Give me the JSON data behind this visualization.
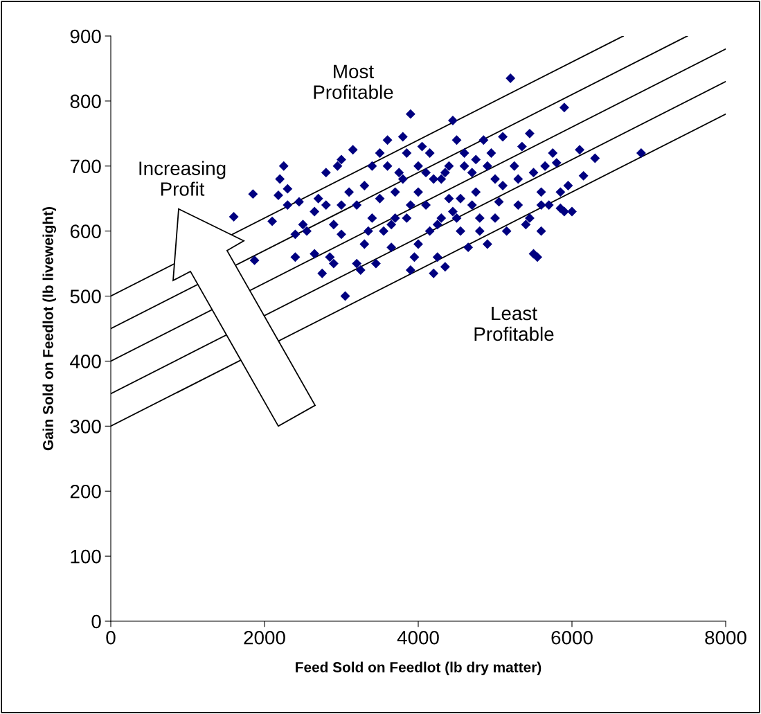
{
  "chart_data": {
    "type": "scatter",
    "xlabel": "Feed Sold on Feedlot (lb dry matter)",
    "ylabel": "Gain Sold on Feedlot (lb liveweight)",
    "xlim": [
      0,
      8000
    ],
    "ylim": [
      0,
      900
    ],
    "xticks": [
      0,
      2000,
      4000,
      6000,
      8000
    ],
    "yticks": [
      0,
      100,
      200,
      300,
      400,
      500,
      600,
      700,
      800,
      900
    ],
    "grid": false,
    "annotations": [
      "Increasing Profit",
      "Most Profitable",
      "Least Profitable"
    ],
    "series": [
      {
        "marker": "diamond",
        "color": "#000080",
        "x": [
          1600,
          1850,
          1870,
          2100,
          2200,
          2250,
          2180,
          2300,
          2300,
          2400,
          2400,
          2450,
          2550,
          2500,
          2650,
          2700,
          2750,
          2800,
          2850,
          2900,
          2950,
          3000,
          3050,
          3000,
          3100,
          3150,
          3200,
          3250,
          3300,
          3400,
          3450,
          3500,
          3550,
          3600,
          3650,
          3700,
          3750,
          3800,
          3850,
          3900,
          3900,
          3950,
          4000,
          4000,
          4050,
          4100,
          4150,
          4200,
          4250,
          4250,
          4300,
          4350,
          4400,
          4450,
          4500,
          4500,
          4550,
          4600,
          4650,
          4700,
          4750,
          4800,
          4850,
          4900,
          4950,
          5000,
          5050,
          5100,
          5150,
          5200,
          5250,
          5300,
          5350,
          5400,
          5450,
          5500,
          5550,
          5500,
          5600,
          5600,
          5650,
          5700,
          5750,
          5850,
          5900,
          5900,
          5950,
          6000,
          6100,
          6150,
          6300,
          6900,
          5450,
          5600,
          5800,
          5850,
          5000,
          4800,
          4600,
          4400,
          4200,
          4000,
          3800,
          3600,
          3400,
          3200,
          3000,
          2800,
          3500,
          3700,
          3900,
          4100,
          4300,
          4700,
          4900,
          5100,
          3300,
          3650,
          4350,
          4550,
          2650,
          2900,
          3350,
          4750,
          5300,
          3850,
          4150,
          4450
        ],
        "values": [
          622,
          657,
          555,
          615,
          680,
          700,
          655,
          640,
          665,
          595,
          560,
          645,
          600,
          610,
          565,
          650,
          535,
          690,
          560,
          550,
          700,
          710,
          500,
          595,
          660,
          725,
          550,
          540,
          580,
          620,
          550,
          720,
          600,
          740,
          575,
          660,
          690,
          745,
          620,
          780,
          540,
          560,
          700,
          580,
          730,
          640,
          720,
          535,
          560,
          610,
          680,
          545,
          700,
          770,
          740,
          620,
          650,
          720,
          575,
          690,
          660,
          620,
          740,
          580,
          720,
          680,
          645,
          745,
          600,
          835,
          700,
          680,
          730,
          610,
          750,
          565,
          560,
          690,
          640,
          600,
          700,
          640,
          720,
          660,
          630,
          790,
          670,
          630,
          725,
          685,
          712,
          720,
          620,
          660,
          705,
          635,
          620,
          600,
          700,
          650,
          680,
          660,
          680,
          700,
          700,
          640,
          640,
          640,
          650,
          620,
          640,
          690,
          620,
          640,
          700,
          670,
          670,
          610,
          690,
          600,
          630,
          610,
          600,
          710,
          640,
          720,
          600,
          630
        ]
      },
      {
        "type": "line",
        "color": "#000000",
        "x": [
          0,
          8000
        ],
        "values": [
          300,
          780
        ]
      },
      {
        "type": "line",
        "color": "#000000",
        "x": [
          0,
          8000
        ],
        "values": [
          350,
          830
        ]
      },
      {
        "type": "line",
        "color": "#000000",
        "x": [
          0,
          8000
        ],
        "values": [
          400,
          880
        ]
      },
      {
        "type": "line",
        "color": "#000000",
        "x": [
          0,
          7500
        ],
        "values": [
          450,
          900
        ]
      },
      {
        "type": "line",
        "color": "#000000",
        "x": [
          0,
          6667
        ],
        "values": [
          500,
          900
        ]
      }
    ]
  }
}
